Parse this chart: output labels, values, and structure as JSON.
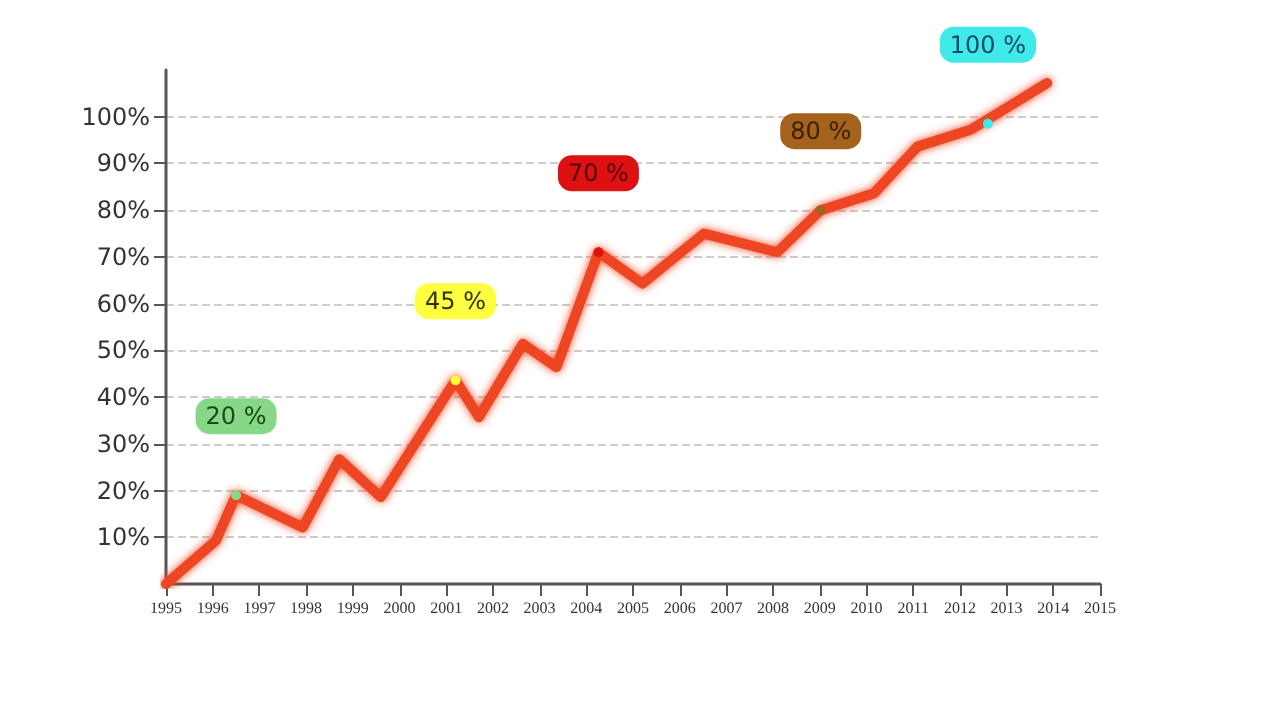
{
  "chart_data": {
    "type": "line",
    "series": [
      {
        "color": "#ee4422",
        "x": [
          1995,
          1996.07,
          1996.5,
          1997.93,
          1998.71,
          1999.6,
          2001.2,
          2001.7,
          2002.64,
          2003.36,
          2004.26,
          2005.2,
          2006.52,
          2008.09,
          2009.02,
          2010.16,
          2011.09,
          2012.23,
          2013.87
        ],
        "values": [
          0,
          9.3,
          19,
          12.1,
          26.7,
          18.6,
          43.6,
          35.7,
          51.4,
          46.4,
          71,
          64.3,
          75,
          71,
          80,
          83.6,
          93.6,
          97.2,
          107.2
        ]
      }
    ],
    "xlim": [
      1995,
      2015
    ],
    "xticks": [
      1995,
      1996,
      1997,
      1998,
      1999,
      2000,
      2001,
      2002,
      2003,
      2004,
      2005,
      2006,
      2007,
      2008,
      2009,
      2010,
      2011,
      2012,
      2013,
      2014,
      2015
    ],
    "ylim": [
      0,
      110
    ],
    "yticks": [
      {
        "value": 10,
        "label": "10%"
      },
      {
        "value": 20,
        "label": "20%"
      },
      {
        "value": 30,
        "label": "30%"
      },
      {
        "value": 40,
        "label": "40%"
      },
      {
        "value": 50,
        "label": "50%"
      },
      {
        "value": 60,
        "label": "60%"
      },
      {
        "value": 70,
        "label": "70%"
      },
      {
        "value": 80,
        "label": "80%"
      },
      {
        "value": 90,
        "label": "90%"
      },
      {
        "value": 100,
        "label": "100%"
      }
    ],
    "grid": "y",
    "line_style": "solid",
    "marker": "none",
    "annotations": [
      {
        "text": "20 %",
        "x": 1996.5,
        "y": 19
      },
      {
        "text": "45 %",
        "x": 2001.2,
        "y": 43.6
      },
      {
        "text": "70 %",
        "x": 2004.26,
        "y": 71
      },
      {
        "text": "80 %",
        "x": 2009.02,
        "y": 80
      },
      {
        "text": "100 %",
        "x": 2012.6,
        "y": 98.5
      }
    ]
  }
}
